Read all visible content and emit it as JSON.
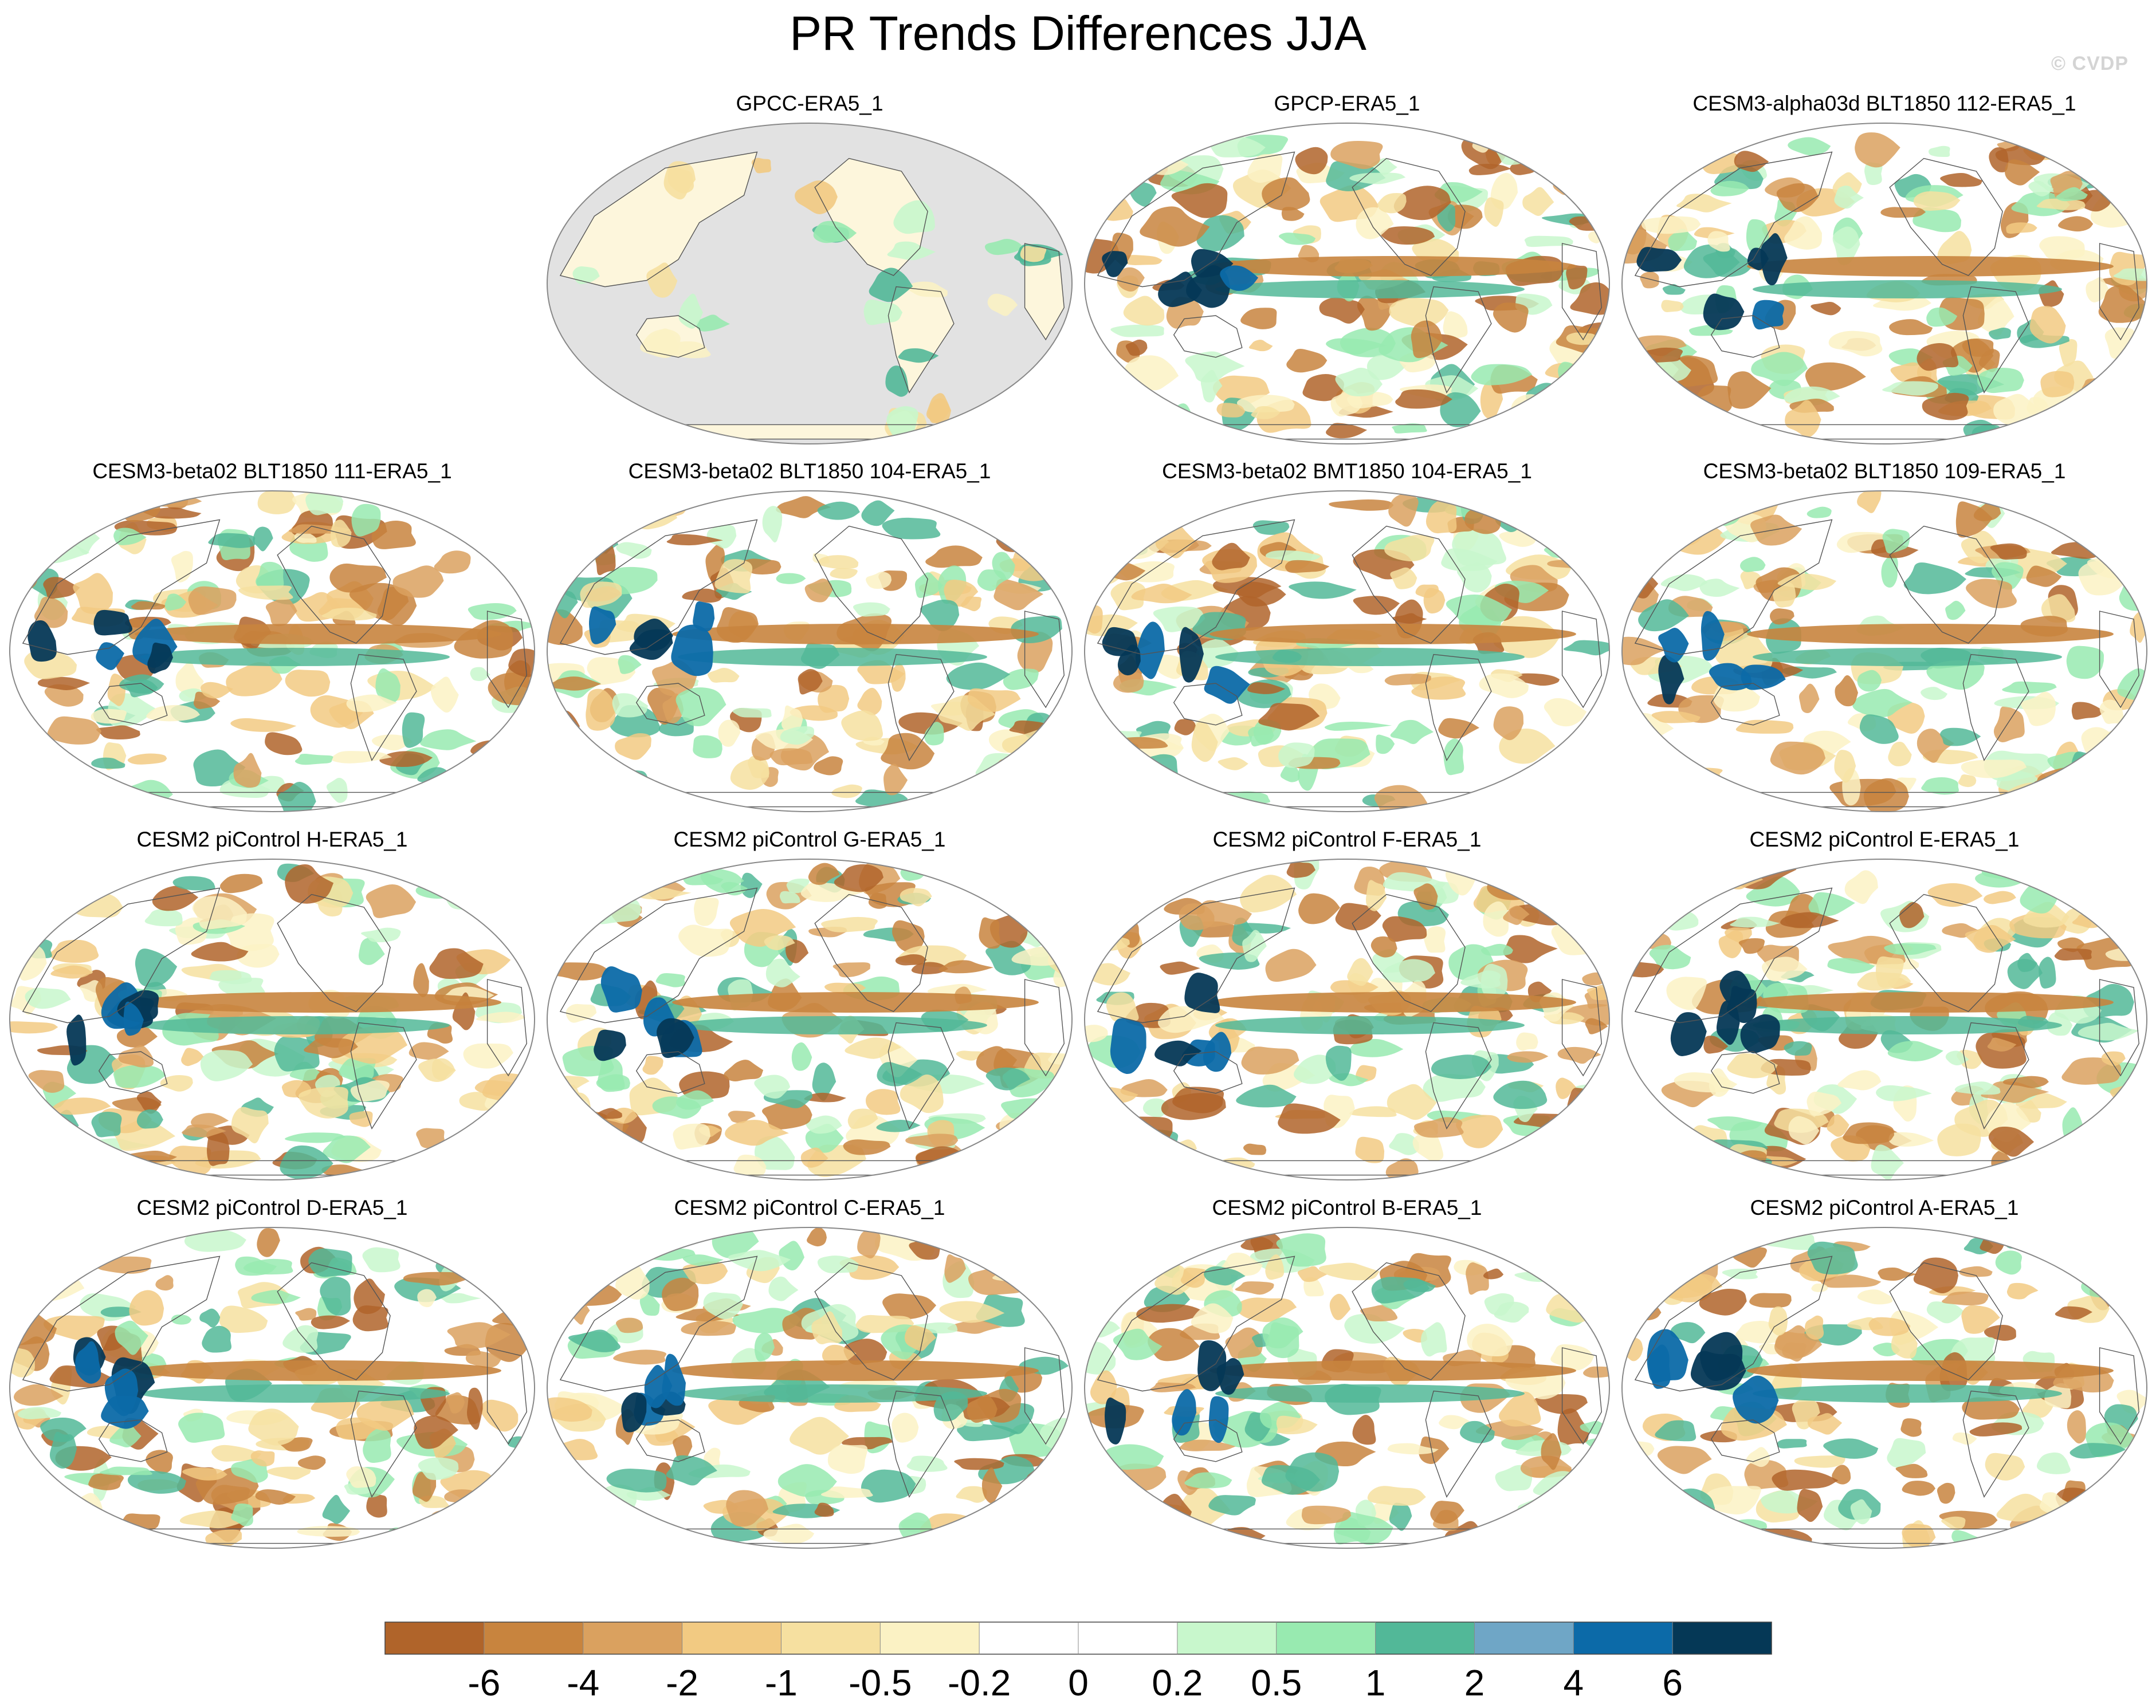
{
  "title": "PR Trends Differences JJA",
  "watermark": "© CVDP",
  "colors": {
    "land_mask": "#e2e2e2",
    "coast": "#555555",
    "outline": "#888888"
  },
  "panels": [
    {
      "title": "GPCC-ERA5_1",
      "variant": "obs-land",
      "seed": 3
    },
    {
      "title": "GPCP-ERA5_1",
      "variant": "ocean",
      "seed": 7
    },
    {
      "title": "CESM3-alpha03d BLT1850 112-ERA5_1",
      "variant": "ocean",
      "seed": 11
    },
    {
      "title": "CESM3-beta02 BLT1850 111-ERA5_1",
      "variant": "ocean",
      "seed": 13
    },
    {
      "title": "CESM3-beta02 BLT1850 104-ERA5_1",
      "variant": "ocean",
      "seed": 17
    },
    {
      "title": "CESM3-beta02 BMT1850 104-ERA5_1",
      "variant": "ocean",
      "seed": 19
    },
    {
      "title": "CESM3-beta02 BLT1850 109-ERA5_1",
      "variant": "ocean",
      "seed": 23
    },
    {
      "title": "CESM2 piControl H-ERA5_1",
      "variant": "ocean",
      "seed": 29
    },
    {
      "title": "CESM2 piControl G-ERA5_1",
      "variant": "ocean",
      "seed": 31
    },
    {
      "title": "CESM2 piControl F-ERA5_1",
      "variant": "ocean",
      "seed": 37
    },
    {
      "title": "CESM2 piControl E-ERA5_1",
      "variant": "ocean",
      "seed": 41
    },
    {
      "title": "CESM2 piControl D-ERA5_1",
      "variant": "ocean",
      "seed": 43
    },
    {
      "title": "CESM2 piControl C-ERA5_1",
      "variant": "ocean",
      "seed": 47
    },
    {
      "title": "CESM2 piControl B-ERA5_1",
      "variant": "ocean",
      "seed": 53
    },
    {
      "title": "CESM2 piControl A-ERA5_1",
      "variant": "ocean",
      "seed": 59
    }
  ],
  "colorbar": {
    "colors": [
      "#b0642a",
      "#c8843e",
      "#daa15f",
      "#f2ca82",
      "#f6e0a0",
      "#fbf2c4",
      "#ffffff",
      "#ffffff",
      "#c8f7cc",
      "#98eab0",
      "#52b898",
      "#6fa6c6",
      "#0c6aa8",
      "#053856"
    ],
    "labels": [
      "-6",
      "-4",
      "-2",
      "-1",
      "-0.5",
      "-0.2",
      "0",
      "0.2",
      "0.5",
      "1",
      "2",
      "4",
      "6"
    ]
  }
}
